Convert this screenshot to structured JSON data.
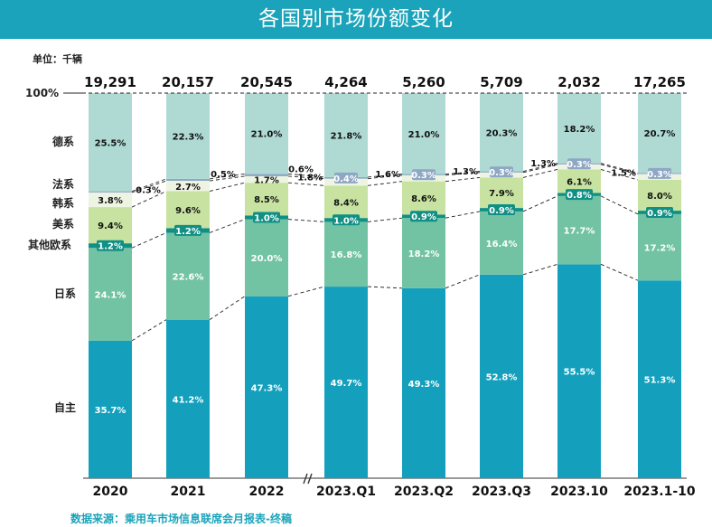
{
  "header": {
    "title": "各国别市场份额变化",
    "unit": "单位：千辆",
    "source": "数据来源：乘用车市场信息联席会月报表-终稿"
  },
  "colors": {
    "background": "#ffffff",
    "title_bar": "#1aa3ba",
    "自主": "#14a0bd",
    "日系": "#72c3a4",
    "其他欧系": "#108f84",
    "美系": "#c7e2a1",
    "韩系": "#eef4e2",
    "法系": "#8ea7c3",
    "德系": "#afdad3"
  },
  "chart_data": {
    "type": "bar",
    "stacked": true,
    "normalized": true,
    "title": "各国别市场份额变化",
    "unit": "千辆",
    "ylim": [
      0,
      100
    ],
    "y_top_label": "100%",
    "categories": [
      "2020",
      "2021",
      "2022",
      "2023.Q1",
      "2023.Q2",
      "2023.Q3",
      "2023.10",
      "2023.1-10"
    ],
    "totals": [
      "19,291",
      "20,157",
      "20,545",
      "4,264",
      "5,260",
      "5,709",
      "2,032",
      "17,265"
    ],
    "axis_break_between": [
      "2022",
      "2023.Q1"
    ],
    "series": [
      {
        "name": "自主",
        "values": [
          35.7,
          41.2,
          47.3,
          49.7,
          49.3,
          52.8,
          55.5,
          51.3
        ],
        "labels": [
          "35.7%",
          "41.2%",
          "47.3%",
          "49.7%",
          "49.3%",
          "52.8%",
          "55.5%",
          "51.3%"
        ]
      },
      {
        "name": "日系",
        "values": [
          24.1,
          22.6,
          20.0,
          16.8,
          18.2,
          16.4,
          17.7,
          17.2
        ],
        "labels": [
          "24.1%",
          "22.6%",
          "20.0%",
          "16.8%",
          "18.2%",
          "16.4%",
          "17.7%",
          "17.2%"
        ]
      },
      {
        "name": "其他欧系",
        "values": [
          1.2,
          1.2,
          1.0,
          1.0,
          0.9,
          0.9,
          0.8,
          0.9
        ],
        "labels": [
          "1.2%",
          "1.2%",
          "1.0%",
          "1.0%",
          "0.9%",
          "0.9%",
          "0.8%",
          "0.9%"
        ]
      },
      {
        "name": "美系",
        "values": [
          9.4,
          9.6,
          8.5,
          8.4,
          8.6,
          7.9,
          6.1,
          8.0
        ],
        "labels": [
          "9.4%",
          "9.6%",
          "8.5%",
          "8.4%",
          "8.6%",
          "7.9%",
          "6.1%",
          "8.0%"
        ]
      },
      {
        "name": "韩系",
        "values": [
          3.8,
          2.7,
          1.7,
          1.8,
          1.6,
          1.3,
          1.3,
          1.5
        ],
        "labels": [
          "3.8%",
          "2.7%",
          "1.7%",
          "1.8%",
          "1.6%",
          "1.3%",
          "1.3%",
          "1.5%"
        ]
      },
      {
        "name": "法系",
        "values": [
          0.3,
          0.5,
          0.6,
          0.4,
          0.3,
          0.3,
          0.3,
          0.3
        ],
        "labels": [
          "0.3%",
          "0.5%",
          "0.6%",
          "0.4%",
          "0.3%",
          "0.3%",
          "0.3%",
          "0.3%"
        ]
      },
      {
        "name": "德系",
        "values": [
          25.5,
          22.3,
          21.0,
          21.8,
          21.0,
          20.3,
          18.2,
          20.7
        ],
        "labels": [
          "25.5%",
          "22.3%",
          "21.0%",
          "21.8%",
          "21.0%",
          "20.3%",
          "18.2%",
          "20.7%"
        ]
      }
    ],
    "connector_lines": "dashed",
    "legend": "left-side labels"
  }
}
